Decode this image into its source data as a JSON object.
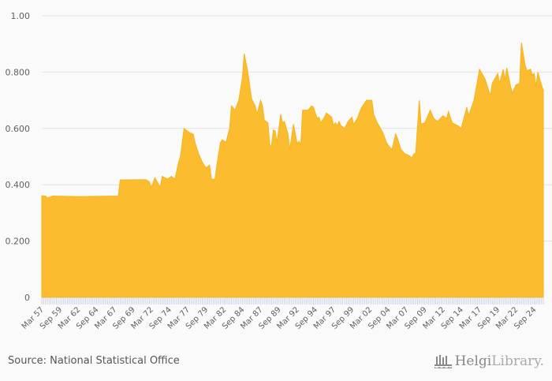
{
  "chart_data": {
    "type": "area",
    "title": "",
    "xlabel": "",
    "ylabel": "",
    "ylim": [
      0,
      1
    ],
    "y_ticks": [
      "0",
      "0.200",
      "0.400",
      "0.600",
      "0.800",
      "1.00"
    ],
    "y_tick_values": [
      0,
      0.2,
      0.4,
      0.6,
      0.8,
      1.0
    ],
    "x_tick_labels": [
      "Mar 57",
      "Sep 59",
      "Mar 62",
      "Sep 64",
      "Mar 67",
      "Sep 69",
      "Mar 72",
      "Sep 74",
      "Mar 77",
      "Sep 79",
      "Mar 82",
      "Sep 84",
      "Mar 87",
      "Sep 89",
      "Mar 92",
      "Sep 94",
      "Mar 97",
      "Sep 99",
      "Mar 02",
      "Sep 04",
      "Mar 07",
      "Sep 09",
      "Mar 12",
      "Sep 14",
      "Mar 17",
      "Sep 19",
      "Mar 22",
      "Sep 24"
    ],
    "x_range_years": [
      1957,
      2025.75
    ],
    "grid": true,
    "legend": "none",
    "color": "#fbbd2f",
    "series": [
      {
        "name": "value",
        "points": [
          [
            1957.0,
            0.361
          ],
          [
            1957.5,
            0.36
          ],
          [
            1957.75,
            0.353
          ],
          [
            1958.5,
            0.36
          ],
          [
            1962.0,
            0.358
          ],
          [
            1967.5,
            0.36
          ],
          [
            1967.75,
            0.417
          ],
          [
            1971.25,
            0.418
          ],
          [
            1971.75,
            0.41
          ],
          [
            1972.0,
            0.39
          ],
          [
            1972.5,
            0.425
          ],
          [
            1973.25,
            0.39
          ],
          [
            1973.5,
            0.43
          ],
          [
            1974.25,
            0.42
          ],
          [
            1974.75,
            0.43
          ],
          [
            1975.25,
            0.42
          ],
          [
            1975.75,
            0.48
          ],
          [
            1976.0,
            0.5
          ],
          [
            1976.5,
            0.6
          ],
          [
            1977.25,
            0.585
          ],
          [
            1977.75,
            0.58
          ],
          [
            1978.0,
            0.55
          ],
          [
            1978.5,
            0.51
          ],
          [
            1979.0,
            0.48
          ],
          [
            1979.5,
            0.46
          ],
          [
            1980.0,
            0.47
          ],
          [
            1980.25,
            0.42
          ],
          [
            1980.75,
            0.42
          ],
          [
            1981.0,
            0.47
          ],
          [
            1981.5,
            0.55
          ],
          [
            1981.75,
            0.56
          ],
          [
            1982.25,
            0.55
          ],
          [
            1982.75,
            0.6
          ],
          [
            1983.0,
            0.68
          ],
          [
            1983.5,
            0.665
          ],
          [
            1984.0,
            0.7
          ],
          [
            1984.5,
            0.78
          ],
          [
            1984.75,
            0.865
          ],
          [
            1985.25,
            0.8
          ],
          [
            1985.75,
            0.705
          ],
          [
            1986.25,
            0.68
          ],
          [
            1986.5,
            0.65
          ],
          [
            1987.0,
            0.7
          ],
          [
            1987.25,
            0.68
          ],
          [
            1987.5,
            0.63
          ],
          [
            1988.0,
            0.62
          ],
          [
            1988.25,
            0.54
          ],
          [
            1988.5,
            0.54
          ],
          [
            1988.75,
            0.595
          ],
          [
            1989.0,
            0.59
          ],
          [
            1989.25,
            0.55
          ],
          [
            1989.75,
            0.65
          ],
          [
            1990.0,
            0.62
          ],
          [
            1990.25,
            0.625
          ],
          [
            1990.75,
            0.58
          ],
          [
            1991.0,
            0.525
          ],
          [
            1991.5,
            0.615
          ],
          [
            1992.0,
            0.545
          ],
          [
            1992.25,
            0.555
          ],
          [
            1992.5,
            0.54
          ],
          [
            1992.75,
            0.665
          ],
          [
            1993.5,
            0.665
          ],
          [
            1994.0,
            0.68
          ],
          [
            1994.25,
            0.675
          ],
          [
            1994.75,
            0.635
          ],
          [
            1995.0,
            0.64
          ],
          [
            1995.25,
            0.62
          ],
          [
            1995.75,
            0.64
          ],
          [
            1996.0,
            0.655
          ],
          [
            1996.75,
            0.64
          ],
          [
            1997.0,
            0.61
          ],
          [
            1997.25,
            0.62
          ],
          [
            1997.5,
            0.61
          ],
          [
            1997.75,
            0.625
          ],
          [
            1998.0,
            0.61
          ],
          [
            1998.5,
            0.6
          ],
          [
            1999.0,
            0.625
          ],
          [
            1999.5,
            0.64
          ],
          [
            1999.75,
            0.615
          ],
          [
            2000.25,
            0.635
          ],
          [
            2000.75,
            0.67
          ],
          [
            2001.25,
            0.69
          ],
          [
            2001.5,
            0.7
          ],
          [
            2002.0,
            0.7
          ],
          [
            2002.25,
            0.7
          ],
          [
            2002.5,
            0.65
          ],
          [
            2003.0,
            0.62
          ],
          [
            2003.75,
            0.585
          ],
          [
            2004.25,
            0.55
          ],
          [
            2004.5,
            0.54
          ],
          [
            2005.0,
            0.525
          ],
          [
            2005.5,
            0.58
          ],
          [
            2005.75,
            0.565
          ],
          [
            2006.25,
            0.525
          ],
          [
            2006.75,
            0.51
          ],
          [
            2007.25,
            0.505
          ],
          [
            2007.75,
            0.495
          ],
          [
            2008.0,
            0.51
          ],
          [
            2008.25,
            0.51
          ],
          [
            2008.75,
            0.7
          ],
          [
            2009.0,
            0.615
          ],
          [
            2009.5,
            0.62
          ],
          [
            2010.25,
            0.665
          ],
          [
            2010.75,
            0.635
          ],
          [
            2011.25,
            0.625
          ],
          [
            2012.0,
            0.645
          ],
          [
            2012.5,
            0.635
          ],
          [
            2012.75,
            0.66
          ],
          [
            2013.25,
            0.62
          ],
          [
            2014.0,
            0.61
          ],
          [
            2014.5,
            0.6
          ],
          [
            2015.25,
            0.675
          ],
          [
            2015.5,
            0.645
          ],
          [
            2016.25,
            0.7
          ],
          [
            2017.0,
            0.81
          ],
          [
            2017.75,
            0.776
          ],
          [
            2018.5,
            0.715
          ],
          [
            2018.75,
            0.76
          ],
          [
            2019.5,
            0.795
          ],
          [
            2019.75,
            0.76
          ],
          [
            2020.25,
            0.81
          ],
          [
            2020.5,
            0.77
          ],
          [
            2020.75,
            0.815
          ],
          [
            2021.25,
            0.75
          ],
          [
            2021.5,
            0.725
          ],
          [
            2022.0,
            0.755
          ],
          [
            2022.5,
            0.76
          ],
          [
            2022.75,
            0.905
          ],
          [
            2023.25,
            0.825
          ],
          [
            2023.5,
            0.805
          ],
          [
            2024.0,
            0.81
          ],
          [
            2024.25,
            0.79
          ],
          [
            2024.5,
            0.795
          ],
          [
            2024.75,
            0.75
          ],
          [
            2025.0,
            0.8
          ],
          [
            2025.25,
            0.775
          ],
          [
            2025.75,
            0.735
          ]
        ]
      }
    ]
  },
  "footer": {
    "source": "Source: National Statistical Office",
    "logo_brand": "Helgi",
    "logo_suffix": "Library."
  }
}
